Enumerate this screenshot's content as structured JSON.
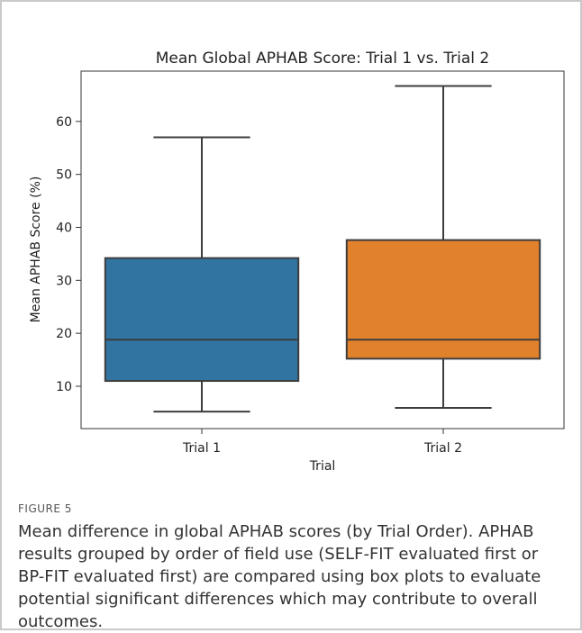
{
  "chart_data": {
    "type": "box",
    "title": "Mean Global APHAB Score: Trial 1 vs. Trial 2",
    "xlabel": "Trial",
    "ylabel": "Mean APHAB Score (%)",
    "categories": [
      "Trial 1",
      "Trial 2"
    ],
    "yticks": [
      10,
      20,
      30,
      40,
      50,
      60
    ],
    "ylim": [
      2,
      69.5
    ],
    "grid": false,
    "boxes": [
      {
        "category": "Trial 1",
        "whisker_low": 5.2,
        "q1": 11.0,
        "median": 18.8,
        "q3": 34.2,
        "whisker_high": 57.0,
        "color": "#3274a1"
      },
      {
        "category": "Trial 2",
        "whisker_low": 5.9,
        "q1": 15.2,
        "median": 18.8,
        "q3": 37.6,
        "whisker_high": 66.7,
        "color": "#e1812c"
      }
    ]
  },
  "caption": {
    "label": "FIGURE 5",
    "text": "Mean difference in global APHAB scores (by Trial Order). APHAB results grouped by order of field use (SELF-FIT evaluated first or BP-FIT evaluated first) are compared using box plots to evaluate potential significant differences which may contribute to overall outcomes."
  }
}
